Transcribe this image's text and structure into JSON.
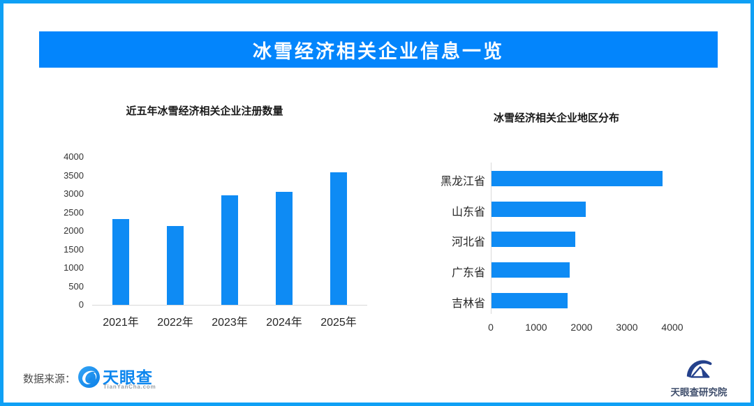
{
  "page": {
    "banner_title": "冰雪经济相关企业信息一览",
    "colors": {
      "outer_border": "#0FA0F5",
      "banner_background": "#0385FC",
      "bar_fill": "#0E8BF4",
      "axis_line": "#D9D9D9"
    }
  },
  "chart_data": [
    {
      "type": "bar",
      "orientation": "vertical",
      "title": "近五年冰雪经济相关企业注册数量",
      "categories": [
        "2021年",
        "2022年",
        "2023年",
        "2024年",
        "2025年"
      ],
      "values": [
        2330,
        2140,
        2960,
        3050,
        3590
      ],
      "ylabel": "",
      "xlabel": "",
      "ylim": [
        0,
        4000
      ],
      "yticks": [
        0,
        500,
        1000,
        1500,
        2000,
        2500,
        3000,
        3500,
        4000
      ],
      "grid": false,
      "legend": false,
      "bar_color": "#0E8BF4"
    },
    {
      "type": "bar",
      "orientation": "horizontal",
      "title": "冰雪经济相关企业地区分布",
      "categories": [
        "黑龙江省",
        "山东省",
        "河北省",
        "广东省",
        "吉林省"
      ],
      "values": [
        3770,
        2070,
        1850,
        1730,
        1670
      ],
      "ylabel": "",
      "xlabel": "",
      "xlim": [
        0,
        4000
      ],
      "xticks": [
        0,
        1000,
        2000,
        3000,
        4000
      ],
      "grid": false,
      "legend": false,
      "bar_color": "#0E8BF4"
    }
  ],
  "footer": {
    "source_label": "数据来源：",
    "tianyancha_wordmark": "天眼查",
    "tianyancha_subtext": "TianYanCha.com",
    "research_institute": "天眼查研究院"
  }
}
